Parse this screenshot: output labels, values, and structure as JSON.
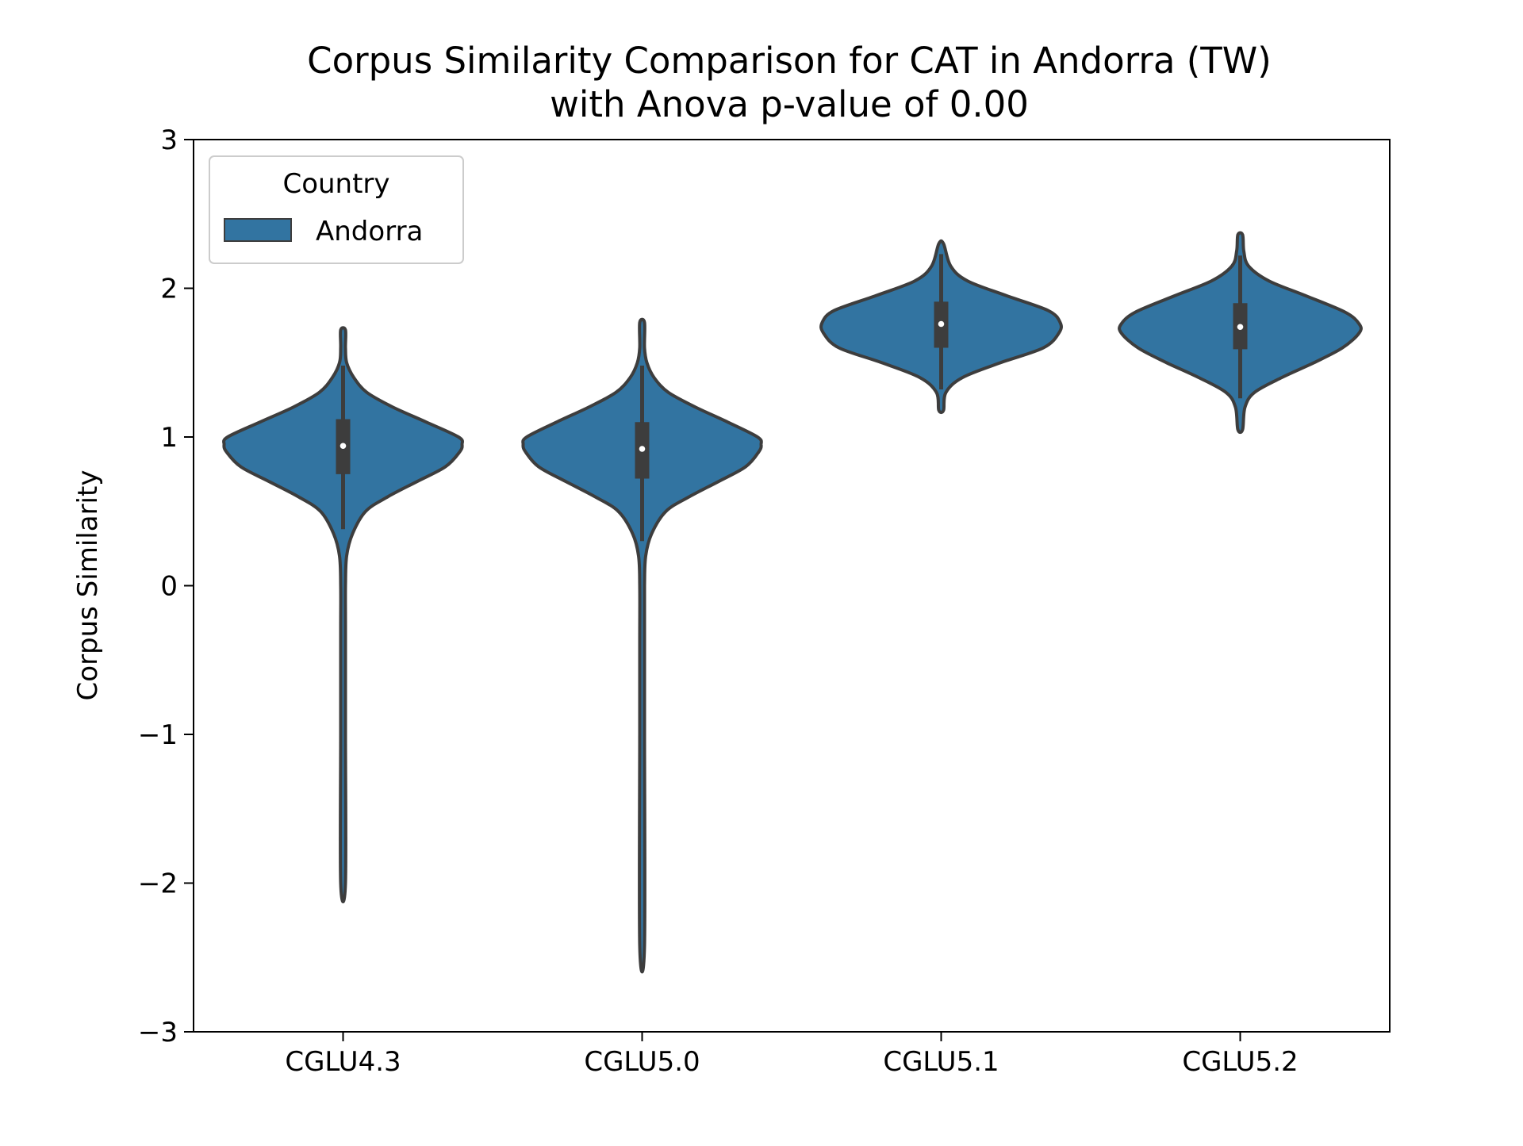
{
  "chart_data": {
    "type": "violin",
    "title_lines": [
      "Corpus Similarity Comparison for CAT in Andorra (TW)",
      "with Anova p-value of 0.00"
    ],
    "xlabel": "",
    "ylabel": "Corpus Similarity",
    "ylim": [
      -3,
      3
    ],
    "yticks": [
      -3,
      -2,
      -1,
      0,
      1,
      2,
      3
    ],
    "ytick_labels": [
      "−3",
      "−2",
      "−1",
      "0",
      "1",
      "2",
      "3"
    ],
    "categories": [
      "CGLU4.3",
      "CGLU5.0",
      "CGLU5.1",
      "CGLU5.2"
    ],
    "legend": {
      "title": "Country",
      "entries": [
        "Andorra"
      ],
      "placement": "upper-left"
    },
    "series": [
      {
        "name": "Andorra",
        "color": "#3274a1",
        "edge_color": "#3d3d3d",
        "violins": [
          {
            "category": "CGLU4.3",
            "min": -2.0,
            "max": 1.72,
            "q1": 0.75,
            "median": 0.94,
            "q3": 1.12,
            "whisker_low": 0.38,
            "whisker_high": 1.48,
            "density": [
              [
                -2.0,
                0.005
              ],
              [
                -1.0,
                0.008
              ],
              [
                -0.3,
                0.01
              ],
              [
                0.0,
                0.015
              ],
              [
                0.2,
                0.03
              ],
              [
                0.35,
                0.08
              ],
              [
                0.5,
                0.19
              ],
              [
                0.6,
                0.38
              ],
              [
                0.7,
                0.62
              ],
              [
                0.8,
                0.86
              ],
              [
                0.9,
                0.98
              ],
              [
                0.95,
                1.0
              ],
              [
                1.0,
                0.97
              ],
              [
                1.1,
                0.7
              ],
              [
                1.2,
                0.42
              ],
              [
                1.3,
                0.2
              ],
              [
                1.4,
                0.09
              ],
              [
                1.5,
                0.03
              ],
              [
                1.6,
                0.015
              ],
              [
                1.72,
                0.005
              ]
            ]
          },
          {
            "category": "CGLU5.0",
            "min": -2.42,
            "max": 1.77,
            "q1": 0.72,
            "median": 0.92,
            "q3": 1.1,
            "whisker_low": 0.3,
            "whisker_high": 1.48,
            "density": [
              [
                -2.42,
                0.005
              ],
              [
                -1.0,
                0.008
              ],
              [
                -0.4,
                0.012
              ],
              [
                0.0,
                0.015
              ],
              [
                0.2,
                0.03
              ],
              [
                0.35,
                0.08
              ],
              [
                0.5,
                0.2
              ],
              [
                0.6,
                0.4
              ],
              [
                0.7,
                0.64
              ],
              [
                0.8,
                0.87
              ],
              [
                0.9,
                0.98
              ],
              [
                0.95,
                1.0
              ],
              [
                1.0,
                0.97
              ],
              [
                1.1,
                0.72
              ],
              [
                1.2,
                0.45
              ],
              [
                1.3,
                0.22
              ],
              [
                1.4,
                0.1
              ],
              [
                1.5,
                0.04
              ],
              [
                1.6,
                0.015
              ],
              [
                1.77,
                0.005
              ]
            ]
          },
          {
            "category": "CGLU5.1",
            "min": 1.18,
            "max": 2.3,
            "q1": 1.6,
            "median": 1.76,
            "q3": 1.91,
            "whisker_low": 1.32,
            "whisker_high": 2.23,
            "density": [
              [
                1.18,
                0.01
              ],
              [
                1.3,
                0.04
              ],
              [
                1.4,
                0.18
              ],
              [
                1.5,
                0.5
              ],
              [
                1.6,
                0.86
              ],
              [
                1.7,
                0.99
              ],
              [
                1.77,
                1.0
              ],
              [
                1.85,
                0.9
              ],
              [
                1.95,
                0.55
              ],
              [
                2.05,
                0.22
              ],
              [
                2.15,
                0.08
              ],
              [
                2.3,
                0.01
              ]
            ]
          },
          {
            "category": "CGLU5.2",
            "min": 1.05,
            "max": 2.36,
            "q1": 1.59,
            "median": 1.74,
            "q3": 1.9,
            "whisker_low": 1.26,
            "whisker_high": 2.22,
            "density": [
              [
                1.05,
                0.01
              ],
              [
                1.2,
                0.04
              ],
              [
                1.3,
                0.12
              ],
              [
                1.4,
                0.35
              ],
              [
                1.5,
                0.62
              ],
              [
                1.6,
                0.86
              ],
              [
                1.7,
                1.0
              ],
              [
                1.76,
                1.0
              ],
              [
                1.84,
                0.88
              ],
              [
                1.95,
                0.55
              ],
              [
                2.05,
                0.24
              ],
              [
                2.15,
                0.07
              ],
              [
                2.25,
                0.03
              ],
              [
                2.36,
                0.01
              ]
            ]
          }
        ]
      }
    ]
  }
}
